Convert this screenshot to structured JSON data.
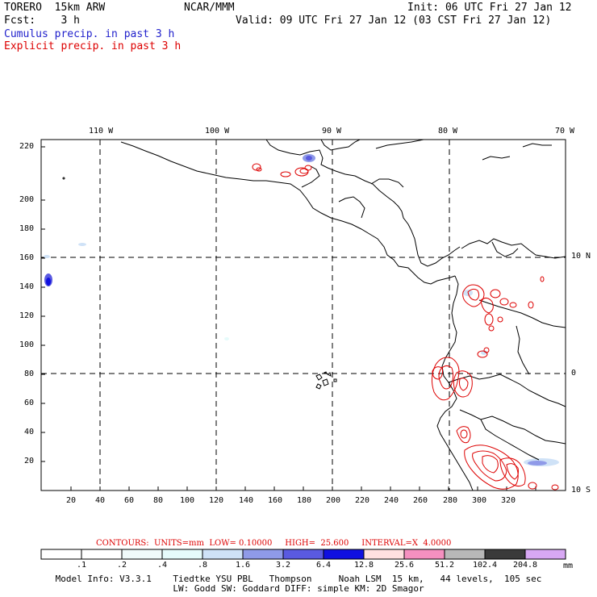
{
  "header": {
    "model_name": "TORERO  15km ARW",
    "center": "NCAR/MMM",
    "init": "Init: 06 UTC Fri 27 Jan 12",
    "fcst": "Fcst:    3 h",
    "valid": "Valid: 09 UTC Fri 27 Jan 12 (03 CST Fri 27 Jan 12)",
    "field1": "Cumulus precip. in past 3 h",
    "field2": "Explicit precip. in past 3 h",
    "field1_color": "#2222cc",
    "field2_color": "#dd0000"
  },
  "map": {
    "lon_labels": [
      "110 W",
      "100 W",
      "90 W",
      "80 W",
      "70 W"
    ],
    "lat_labels": [
      "10 N",
      "0",
      "10 S"
    ],
    "x_ticks": [
      "20",
      "40",
      "60",
      "80",
      "100",
      "120",
      "140",
      "160",
      "180",
      "200",
      "220",
      "240",
      "260",
      "280",
      "300",
      "320"
    ],
    "y_ticks": [
      "20",
      "40",
      "60",
      "80",
      "100",
      "120",
      "140",
      "160",
      "180",
      "200",
      "220"
    ]
  },
  "contour_info": {
    "label": "CONTOURS:  UNITS=mm  LOW= 0.10000     HIGH=  25.600     INTERVAL=X  4.0000",
    "color": "#dd0000"
  },
  "colorbar": {
    "labels": [
      ".1",
      ".2",
      ".4",
      ".8",
      "1.6",
      "3.2",
      "6.4",
      "12.8",
      "25.6",
      "51.2",
      "102.4",
      "204.8"
    ],
    "units": "mm",
    "colors": [
      "#ffffff",
      "#ffffff",
      "#f0fafa",
      "#e6fbfb",
      "#cfe2f7",
      "#8f9ae8",
      "#5a5ae0",
      "#1010e0",
      "#ffe0e0",
      "#f590c0",
      "#b8b8b8",
      "#3a3a3a",
      "#d8a8f4"
    ]
  },
  "footer": {
    "line1": "Model Info: V3.3.1    Tiedtke YSU PBL   Thompson     Noah LSM  15 km,   44 levels,  105 sec",
    "line2": "LW: Godd SW: Goddard DIFF: simple KM: 2D Smagor"
  }
}
